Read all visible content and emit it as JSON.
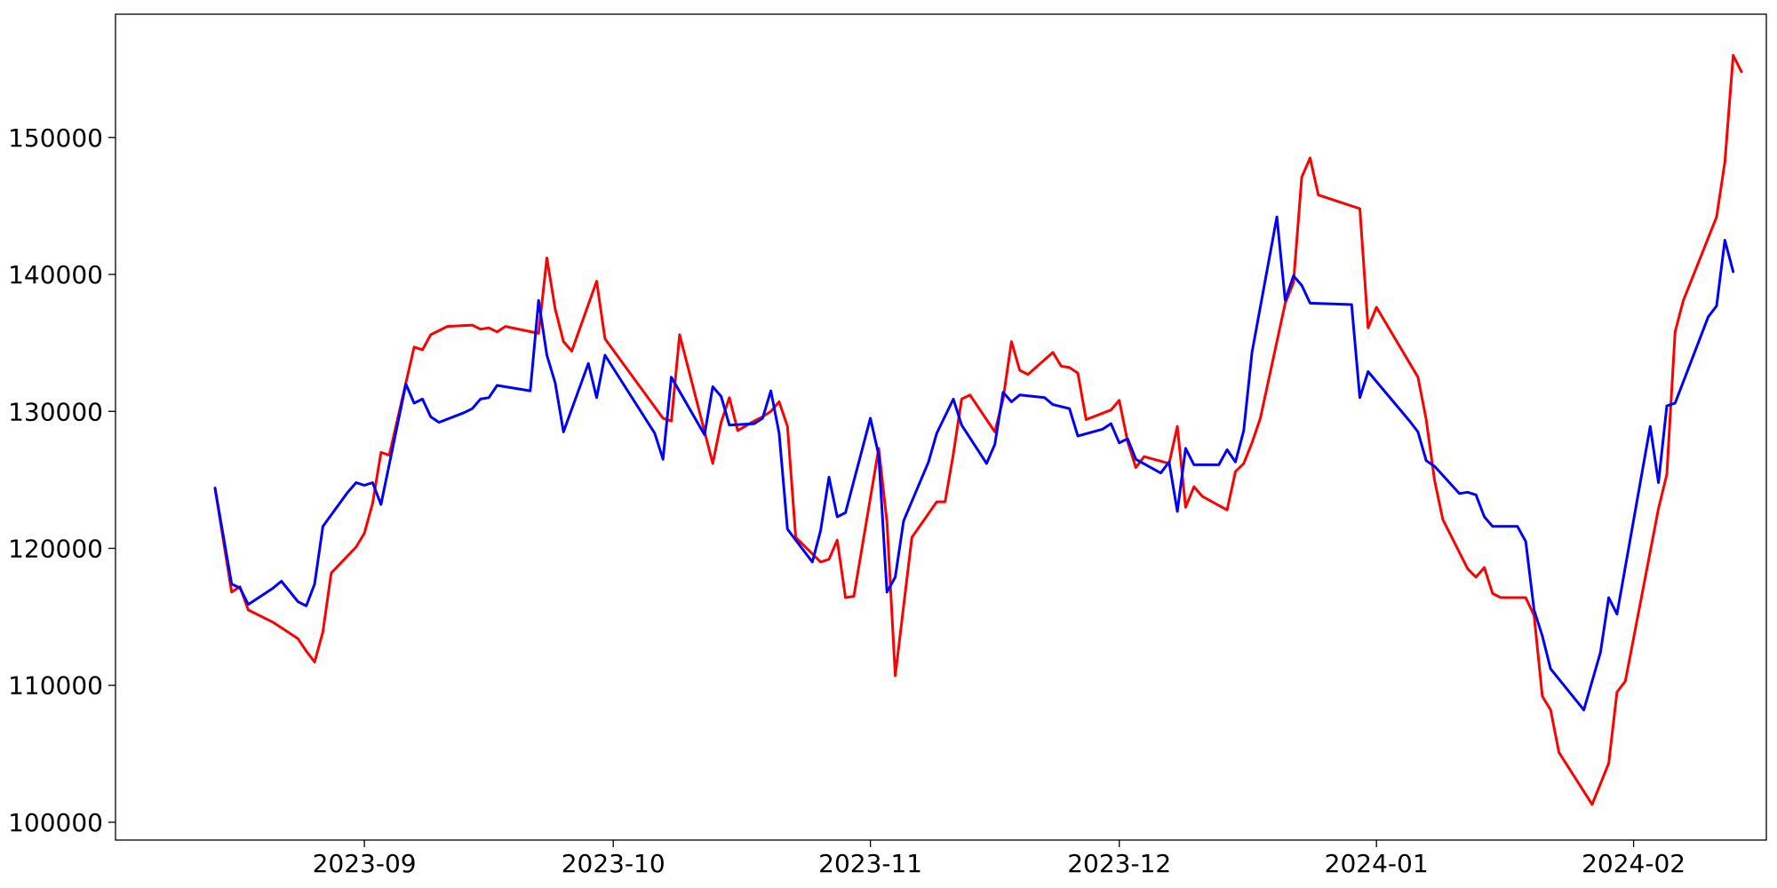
{
  "chart_data": {
    "type": "line",
    "title": "",
    "xlabel": "",
    "ylabel": "",
    "grid": false,
    "xlim": [
      "2023-08-02",
      "2024-02-17"
    ],
    "ylim": [
      98700,
      159000
    ],
    "x_ticks": [
      {
        "date": "2023-09-01",
        "label": "2023-09"
      },
      {
        "date": "2023-10-01",
        "label": "2023-10"
      },
      {
        "date": "2023-11-01",
        "label": "2023-11"
      },
      {
        "date": "2023-12-01",
        "label": "2023-12"
      },
      {
        "date": "2024-01-01",
        "label": "2024-01"
      },
      {
        "date": "2024-02-01",
        "label": "2024-02"
      }
    ],
    "y_ticks": [
      {
        "value": 100000,
        "label": "100000"
      },
      {
        "value": 110000,
        "label": "110000"
      },
      {
        "value": 120000,
        "label": "120000"
      },
      {
        "value": 130000,
        "label": "130000"
      },
      {
        "value": 140000,
        "label": "140000"
      },
      {
        "value": 150000,
        "label": "150000"
      }
    ],
    "series": [
      {
        "color": "#ff0000",
        "points": [
          [
            "2023-08-14",
            124400
          ],
          [
            "2023-08-16",
            116800
          ],
          [
            "2023-08-17",
            117200
          ],
          [
            "2023-08-18",
            115500
          ],
          [
            "2023-08-21",
            114600
          ],
          [
            "2023-08-24",
            113400
          ],
          [
            "2023-08-25",
            112500
          ],
          [
            "2023-08-26",
            111700
          ],
          [
            "2023-08-27",
            113900
          ],
          [
            "2023-08-28",
            118200
          ],
          [
            "2023-08-31",
            120100
          ],
          [
            "2023-09-01",
            121100
          ],
          [
            "2023-09-02",
            123300
          ],
          [
            "2023-09-03",
            127000
          ],
          [
            "2023-09-04",
            126800
          ],
          [
            "2023-09-07",
            134700
          ],
          [
            "2023-09-08",
            134500
          ],
          [
            "2023-09-09",
            135600
          ],
          [
            "2023-09-11",
            136200
          ],
          [
            "2023-09-14",
            136300
          ],
          [
            "2023-09-15",
            136000
          ],
          [
            "2023-09-16",
            136100
          ],
          [
            "2023-09-17",
            135800
          ],
          [
            "2023-09-18",
            136200
          ],
          [
            "2023-09-22",
            135700
          ],
          [
            "2023-09-23",
            141200
          ],
          [
            "2023-09-24",
            137500
          ],
          [
            "2023-09-25",
            135100
          ],
          [
            "2023-09-26",
            134400
          ],
          [
            "2023-09-29",
            139500
          ],
          [
            "2023-09-30",
            135300
          ],
          [
            "2023-10-07",
            129500
          ],
          [
            "2023-10-08",
            129300
          ],
          [
            "2023-10-09",
            135600
          ],
          [
            "2023-10-13",
            126200
          ],
          [
            "2023-10-14",
            129200
          ],
          [
            "2023-10-15",
            131000
          ],
          [
            "2023-10-16",
            128600
          ],
          [
            "2023-10-18",
            129300
          ],
          [
            "2023-10-19",
            129600
          ],
          [
            "2023-10-20",
            130000
          ],
          [
            "2023-10-21",
            130700
          ],
          [
            "2023-10-22",
            128900
          ],
          [
            "2023-10-23",
            120800
          ],
          [
            "2023-10-26",
            119000
          ],
          [
            "2023-10-27",
            119200
          ],
          [
            "2023-10-28",
            120600
          ],
          [
            "2023-10-29",
            116400
          ],
          [
            "2023-10-30",
            116500
          ],
          [
            "2023-11-02",
            127300
          ],
          [
            "2023-11-03",
            121900
          ],
          [
            "2023-11-04",
            110700
          ],
          [
            "2023-11-06",
            120800
          ],
          [
            "2023-11-09",
            123400
          ],
          [
            "2023-11-10",
            123400
          ],
          [
            "2023-11-11",
            126900
          ],
          [
            "2023-11-12",
            130900
          ],
          [
            "2023-11-13",
            131200
          ],
          [
            "2023-11-16",
            128500
          ],
          [
            "2023-11-17",
            130900
          ],
          [
            "2023-11-18",
            135100
          ],
          [
            "2023-11-19",
            133000
          ],
          [
            "2023-11-20",
            132700
          ],
          [
            "2023-11-23",
            134300
          ],
          [
            "2023-11-24",
            133300
          ],
          [
            "2023-11-25",
            133200
          ],
          [
            "2023-11-26",
            132800
          ],
          [
            "2023-11-27",
            129400
          ],
          [
            "2023-11-30",
            130100
          ],
          [
            "2023-12-01",
            130800
          ],
          [
            "2023-12-02",
            127800
          ],
          [
            "2023-12-03",
            125900
          ],
          [
            "2023-12-04",
            126700
          ],
          [
            "2023-12-07",
            126200
          ],
          [
            "2023-12-08",
            128900
          ],
          [
            "2023-12-09",
            123000
          ],
          [
            "2023-12-10",
            124500
          ],
          [
            "2023-12-11",
            123800
          ],
          [
            "2023-12-14",
            122800
          ],
          [
            "2023-12-15",
            125600
          ],
          [
            "2023-12-16",
            126200
          ],
          [
            "2023-12-17",
            127700
          ],
          [
            "2023-12-18",
            129500
          ],
          [
            "2023-12-21",
            137900
          ],
          [
            "2023-12-22",
            139400
          ],
          [
            "2023-12-23",
            147100
          ],
          [
            "2023-12-24",
            148500
          ],
          [
            "2023-12-25",
            145800
          ],
          [
            "2023-12-30",
            144800
          ],
          [
            "2023-12-31",
            136100
          ],
          [
            "2024-01-01",
            137600
          ],
          [
            "2024-01-06",
            132500
          ],
          [
            "2024-01-07",
            129400
          ],
          [
            "2024-01-08",
            125000
          ],
          [
            "2024-01-09",
            122100
          ],
          [
            "2024-01-12",
            118500
          ],
          [
            "2024-01-13",
            117900
          ],
          [
            "2024-01-14",
            118600
          ],
          [
            "2024-01-15",
            116700
          ],
          [
            "2024-01-16",
            116400
          ],
          [
            "2024-01-19",
            116400
          ],
          [
            "2024-01-20",
            115100
          ],
          [
            "2024-01-21",
            109200
          ],
          [
            "2024-01-22",
            108200
          ],
          [
            "2024-01-23",
            105100
          ],
          [
            "2024-01-27",
            101300
          ],
          [
            "2024-01-29",
            104300
          ],
          [
            "2024-01-30",
            109500
          ],
          [
            "2024-01-31",
            110300
          ],
          [
            "2024-02-04",
            122900
          ],
          [
            "2024-02-05",
            125400
          ],
          [
            "2024-02-06",
            135800
          ],
          [
            "2024-02-07",
            138100
          ],
          [
            "2024-02-11",
            144200
          ],
          [
            "2024-02-12",
            148200
          ],
          [
            "2024-02-13",
            156000
          ],
          [
            "2024-02-14",
            154800
          ]
        ]
      },
      {
        "color": "#0000ff",
        "points": [
          [
            "2023-08-14",
            124400
          ],
          [
            "2023-08-16",
            117400
          ],
          [
            "2023-08-17",
            117100
          ],
          [
            "2023-08-18",
            115900
          ],
          [
            "2023-08-21",
            117100
          ],
          [
            "2023-08-22",
            117600
          ],
          [
            "2023-08-24",
            116100
          ],
          [
            "2023-08-25",
            115800
          ],
          [
            "2023-08-26",
            117400
          ],
          [
            "2023-08-27",
            121600
          ],
          [
            "2023-08-30",
            124100
          ],
          [
            "2023-08-31",
            124800
          ],
          [
            "2023-09-01",
            124600
          ],
          [
            "2023-09-02",
            124800
          ],
          [
            "2023-09-03",
            123200
          ],
          [
            "2023-09-06",
            132000
          ],
          [
            "2023-09-07",
            130600
          ],
          [
            "2023-09-08",
            130900
          ],
          [
            "2023-09-09",
            129600
          ],
          [
            "2023-09-10",
            129200
          ],
          [
            "2023-09-13",
            129900
          ],
          [
            "2023-09-14",
            130200
          ],
          [
            "2023-09-15",
            130900
          ],
          [
            "2023-09-16",
            131000
          ],
          [
            "2023-09-17",
            131900
          ],
          [
            "2023-09-21",
            131500
          ],
          [
            "2023-09-22",
            138100
          ],
          [
            "2023-09-23",
            134100
          ],
          [
            "2023-09-24",
            132100
          ],
          [
            "2023-09-25",
            128500
          ],
          [
            "2023-09-28",
            133500
          ],
          [
            "2023-09-29",
            131000
          ],
          [
            "2023-09-30",
            134100
          ],
          [
            "2023-10-06",
            128400
          ],
          [
            "2023-10-07",
            126500
          ],
          [
            "2023-10-08",
            132500
          ],
          [
            "2023-10-12",
            128300
          ],
          [
            "2023-10-13",
            131800
          ],
          [
            "2023-10-14",
            131100
          ],
          [
            "2023-10-15",
            129000
          ],
          [
            "2023-10-18",
            129100
          ],
          [
            "2023-10-19",
            129500
          ],
          [
            "2023-10-20",
            131500
          ],
          [
            "2023-10-21",
            128400
          ],
          [
            "2023-10-22",
            121400
          ],
          [
            "2023-10-25",
            119000
          ],
          [
            "2023-10-26",
            121300
          ],
          [
            "2023-10-27",
            125200
          ],
          [
            "2023-10-28",
            122300
          ],
          [
            "2023-10-29",
            122600
          ],
          [
            "2023-11-01",
            129500
          ],
          [
            "2023-11-02",
            126800
          ],
          [
            "2023-11-03",
            116800
          ],
          [
            "2023-11-04",
            117900
          ],
          [
            "2023-11-05",
            122000
          ],
          [
            "2023-11-08",
            126300
          ],
          [
            "2023-11-09",
            128400
          ],
          [
            "2023-11-11",
            130900
          ],
          [
            "2023-11-12",
            129000
          ],
          [
            "2023-11-15",
            126200
          ],
          [
            "2023-11-16",
            127600
          ],
          [
            "2023-11-17",
            131400
          ],
          [
            "2023-11-18",
            130700
          ],
          [
            "2023-11-19",
            131200
          ],
          [
            "2023-11-22",
            131000
          ],
          [
            "2023-11-23",
            130500
          ],
          [
            "2023-11-25",
            130200
          ],
          [
            "2023-11-26",
            128200
          ],
          [
            "2023-11-29",
            128700
          ],
          [
            "2023-11-30",
            129100
          ],
          [
            "2023-12-01",
            127700
          ],
          [
            "2023-12-02",
            128000
          ],
          [
            "2023-12-03",
            126500
          ],
          [
            "2023-12-06",
            125500
          ],
          [
            "2023-12-07",
            126300
          ],
          [
            "2023-12-08",
            122700
          ],
          [
            "2023-12-09",
            127300
          ],
          [
            "2023-12-10",
            126100
          ],
          [
            "2023-12-13",
            126100
          ],
          [
            "2023-12-14",
            127200
          ],
          [
            "2023-12-15",
            126300
          ],
          [
            "2023-12-16",
            128600
          ],
          [
            "2023-12-17",
            134300
          ],
          [
            "2023-12-20",
            144200
          ],
          [
            "2023-12-21",
            138100
          ],
          [
            "2023-12-22",
            139900
          ],
          [
            "2023-12-23",
            139200
          ],
          [
            "2023-12-24",
            137900
          ],
          [
            "2023-12-29",
            137800
          ],
          [
            "2023-12-30",
            131000
          ],
          [
            "2023-12-31",
            132900
          ],
          [
            "2024-01-05",
            129300
          ],
          [
            "2024-01-06",
            128500
          ],
          [
            "2024-01-07",
            126400
          ],
          [
            "2024-01-08",
            126000
          ],
          [
            "2024-01-11",
            124000
          ],
          [
            "2024-01-12",
            124100
          ],
          [
            "2024-01-13",
            123900
          ],
          [
            "2024-01-14",
            122300
          ],
          [
            "2024-01-15",
            121600
          ],
          [
            "2024-01-18",
            121600
          ],
          [
            "2024-01-19",
            120500
          ],
          [
            "2024-01-20",
            115500
          ],
          [
            "2024-01-21",
            113600
          ],
          [
            "2024-01-22",
            111200
          ],
          [
            "2024-01-26",
            108200
          ],
          [
            "2024-01-28",
            112400
          ],
          [
            "2024-01-29",
            116400
          ],
          [
            "2024-01-30",
            115200
          ],
          [
            "2024-02-03",
            128900
          ],
          [
            "2024-02-04",
            124800
          ],
          [
            "2024-02-05",
            130400
          ],
          [
            "2024-02-06",
            130600
          ],
          [
            "2024-02-10",
            136900
          ],
          [
            "2024-02-11",
            137700
          ],
          [
            "2024-02-12",
            142500
          ],
          [
            "2024-02-13",
            140200
          ]
        ]
      }
    ]
  }
}
